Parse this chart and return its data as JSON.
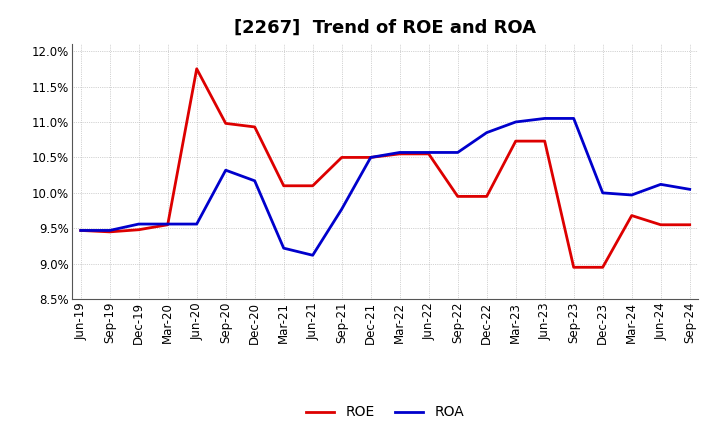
{
  "title": "[2267]  Trend of ROE and ROA",
  "x_labels": [
    "Jun-19",
    "Sep-19",
    "Dec-19",
    "Mar-20",
    "Jun-20",
    "Sep-20",
    "Dec-20",
    "Mar-21",
    "Jun-21",
    "Sep-21",
    "Dec-21",
    "Mar-22",
    "Jun-22",
    "Sep-22",
    "Dec-22",
    "Mar-23",
    "Jun-23",
    "Sep-23",
    "Dec-23",
    "Mar-24",
    "Jun-24",
    "Sep-24"
  ],
  "roe": [
    9.47,
    9.45,
    9.48,
    9.55,
    11.75,
    10.98,
    10.93,
    10.1,
    10.1,
    10.5,
    10.5,
    10.55,
    10.55,
    9.95,
    9.95,
    10.73,
    10.73,
    8.95,
    8.95,
    9.68,
    9.55,
    9.55
  ],
  "roa": [
    9.47,
    9.47,
    9.56,
    9.56,
    9.56,
    10.32,
    10.17,
    9.22,
    9.12,
    9.77,
    10.5,
    10.57,
    10.57,
    10.57,
    10.85,
    11.0,
    11.05,
    11.05,
    10.0,
    9.97,
    10.12,
    10.05
  ],
  "roe_color": "#dd0000",
  "roa_color": "#0000cc",
  "ylim": [
    8.5,
    12.1
  ],
  "yticks": [
    8.5,
    9.0,
    9.5,
    10.0,
    10.5,
    11.0,
    11.5,
    12.0
  ],
  "grid_color": "#aaaaaa",
  "bg_color": "#ffffff",
  "plot_bg_color": "#ffffff",
  "title_fontsize": 13,
  "legend_fontsize": 10,
  "tick_fontsize": 8.5
}
